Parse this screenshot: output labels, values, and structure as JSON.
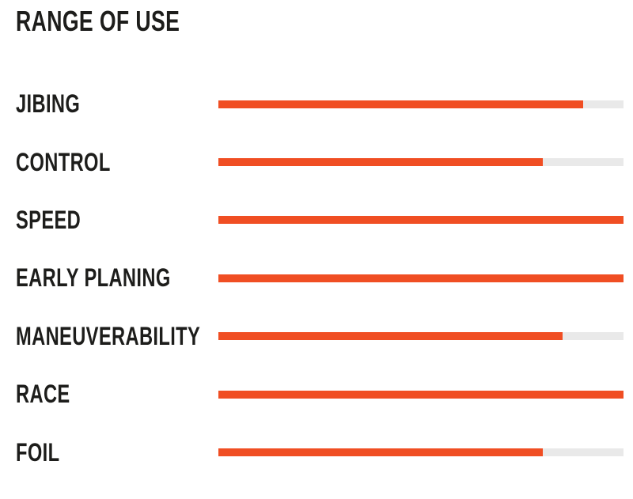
{
  "page": {
    "background_color": "#ffffff"
  },
  "chart_data": {
    "type": "bar",
    "orientation": "horizontal",
    "title": "RANGE OF USE",
    "categories": [
      "JIBING",
      "CONTROL",
      "SPEED",
      "EARLY PLANING",
      "MANEUVERABILITY",
      "RACE",
      "FOIL"
    ],
    "values": [
      90,
      80,
      100,
      100,
      85,
      100,
      80
    ],
    "value_max": 100,
    "xlabel": "",
    "ylabel": "",
    "grid": false,
    "legend_position": "none",
    "bar_color": "#f04e23",
    "track_color": "#e9e9e9",
    "label_color": "#1d1d1b"
  }
}
